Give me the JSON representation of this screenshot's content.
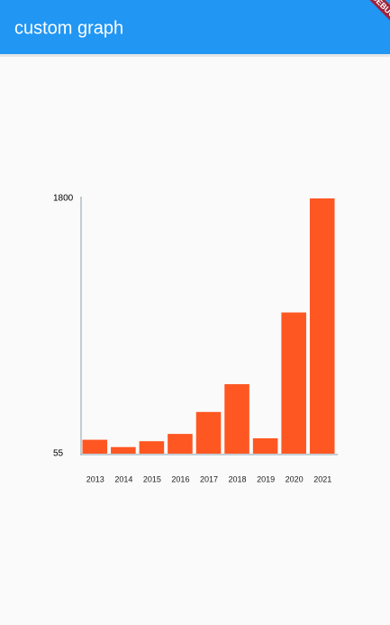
{
  "app_bar": {
    "title": "custom graph"
  },
  "debug_banner": "DEBUG",
  "chart_data": {
    "type": "bar",
    "categories": [
      "2013",
      "2014",
      "2015",
      "2016",
      "2017",
      "2018",
      "2019",
      "2020",
      "2021"
    ],
    "values": [
      150,
      100,
      140,
      190,
      340,
      530,
      160,
      1020,
      1800
    ],
    "color": "#ff5722",
    "ylim": [
      55,
      1800
    ],
    "yticks": [
      55,
      1800
    ],
    "grid": false
  }
}
